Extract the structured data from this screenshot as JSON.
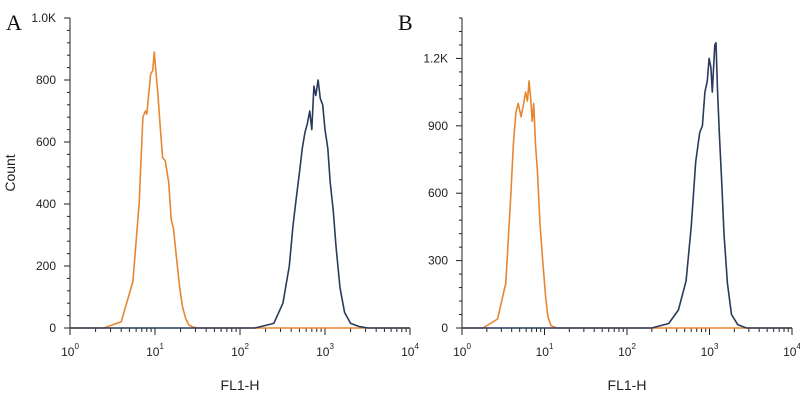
{
  "chart_data": [
    {
      "type": "line",
      "panel_label": "A",
      "title": "",
      "xlabel": "FL1-H",
      "ylabel": "Count",
      "x_scale": "log",
      "xlim": [
        1,
        10000
      ],
      "ylim": [
        0,
        1000
      ],
      "x_ticks": [
        1,
        10,
        100,
        1000,
        10000
      ],
      "y_ticks": [
        0,
        200,
        400,
        600,
        800,
        1000
      ],
      "y_tick_labels": [
        "0",
        "200",
        "400",
        "600",
        "800",
        "1.0K"
      ],
      "series": [
        {
          "color": "#e8862f",
          "x": [
            2.5,
            4,
            5.5,
            6.5,
            7.2,
            7.7,
            8.0,
            8.4,
            8.9,
            9.4,
            9.8,
            10.3,
            10.8,
            11.5,
            12.3,
            13.2,
            14.5,
            15.5,
            16.5,
            18,
            19.5,
            21,
            23,
            25,
            28,
            32
          ],
          "y": [
            0,
            20,
            150,
            400,
            680,
            700,
            690,
            750,
            820,
            830,
            890,
            820,
            760,
            650,
            550,
            540,
            470,
            350,
            320,
            220,
            130,
            70,
            30,
            10,
            3,
            0
          ]
        },
        {
          "color": "#2a3a5c",
          "x": [
            150,
            250,
            320,
            380,
            420,
            460,
            500,
            540,
            580,
            620,
            660,
            700,
            740,
            780,
            830,
            880,
            940,
            1000,
            1080,
            1150,
            1250,
            1350,
            1500,
            1700,
            2000,
            2500,
            3200
          ],
          "y": [
            0,
            15,
            80,
            200,
            330,
            420,
            500,
            580,
            630,
            660,
            700,
            640,
            780,
            750,
            800,
            740,
            720,
            640,
            580,
            470,
            380,
            260,
            130,
            50,
            15,
            5,
            0
          ]
        }
      ]
    },
    {
      "type": "line",
      "panel_label": "B",
      "title": "",
      "xlabel": "FL1-H",
      "ylabel": "",
      "x_scale": "log",
      "xlim": [
        1,
        10000
      ],
      "ylim": [
        0,
        1380
      ],
      "x_ticks": [
        1,
        10,
        100,
        1000,
        10000
      ],
      "y_ticks": [
        0,
        300,
        600,
        900,
        1200
      ],
      "y_tick_labels": [
        "0",
        "300",
        "600",
        "900",
        "1.2K"
      ],
      "series": [
        {
          "color": "#e8862f",
          "x": [
            1.8,
            2.7,
            3.4,
            3.9,
            4.2,
            4.5,
            4.8,
            5.2,
            5.6,
            5.9,
            6.2,
            6.5,
            6.8,
            7.1,
            7.4,
            7.8,
            8.2,
            8.8,
            9.5,
            10.3,
            11,
            12,
            14
          ],
          "y": [
            0,
            40,
            200,
            590,
            820,
            960,
            1000,
            940,
            1000,
            1050,
            1010,
            1100,
            1020,
            920,
            1000,
            810,
            700,
            470,
            300,
            140,
            50,
            10,
            0
          ]
        },
        {
          "color": "#2a3a5c",
          "x": [
            200,
            320,
            420,
            520,
            600,
            680,
            760,
            820,
            880,
            940,
            990,
            1040,
            1080,
            1120,
            1160,
            1200,
            1250,
            1320,
            1400,
            1500,
            1650,
            1850,
            2200,
            2800
          ],
          "y": [
            0,
            20,
            80,
            210,
            450,
            740,
            870,
            900,
            1050,
            1100,
            1200,
            1160,
            1050,
            1160,
            1260,
            1270,
            1060,
            860,
            660,
            420,
            200,
            60,
            15,
            0
          ]
        }
      ]
    }
  ]
}
